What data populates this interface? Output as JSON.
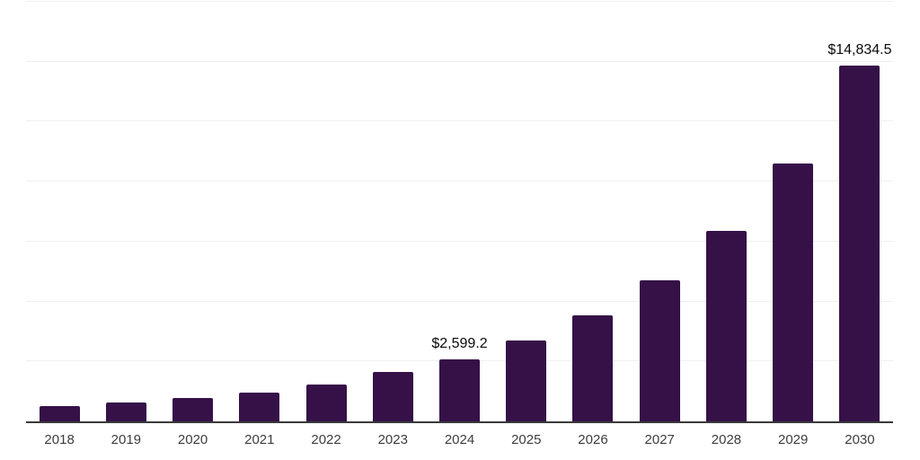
{
  "chart_data": {
    "type": "bar",
    "title": "",
    "xlabel": "",
    "ylabel": "",
    "categories": [
      "2018",
      "2019",
      "2020",
      "2021",
      "2022",
      "2023",
      "2024",
      "2025",
      "2026",
      "2027",
      "2028",
      "2029",
      "2030"
    ],
    "values": [
      620,
      790,
      960,
      1200,
      1530,
      2060,
      2599.2,
      3370,
      4420,
      5880,
      7940,
      10760,
      14834.5
    ],
    "data_labels": [
      {
        "category": "2024",
        "text": "$2,599.2"
      },
      {
        "category": "2030",
        "text": "$14,834.5"
      }
    ],
    "ylim": [
      0,
      17500
    ],
    "gridline_step": 2500,
    "grid": "horizontal",
    "y_tick_labels_visible": false,
    "legend": "none"
  },
  "colors": {
    "bar": "#351148",
    "gridline": "#f0f0f0",
    "axis": "#3a3a3a",
    "x_tick_label": "#3d3d3d",
    "data_label": "#0a0a0a",
    "background": "#ffffff"
  }
}
